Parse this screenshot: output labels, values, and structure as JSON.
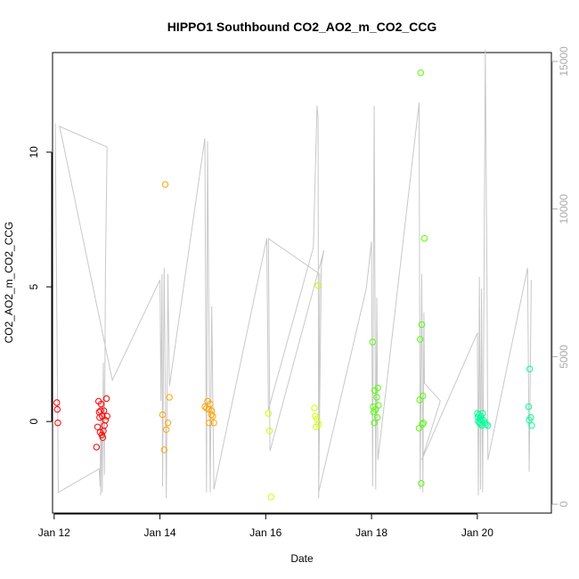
{
  "chart_data": {
    "type": "scatter",
    "title": "HIPPO1 Southbound CO2_AO2_m_CO2_CCG",
    "xlabel": "Date",
    "ylabel": "CO2_AO2_m_CO2_CCG",
    "x_ticks": [
      {
        "day": 12,
        "label": "Jan 12"
      },
      {
        "day": 14,
        "label": "Jan 14"
      },
      {
        "day": 16,
        "label": "Jan 16"
      },
      {
        "day": 18,
        "label": "Jan 18"
      },
      {
        "day": 20,
        "label": "Jan 20"
      }
    ],
    "xlim": [
      11.97,
      21.4
    ],
    "ylim": [
      -3.4,
      13.7
    ],
    "y_ticks": [
      0,
      5,
      10
    ],
    "y2_ticks": [
      0,
      5000,
      10000,
      15000
    ],
    "y2lim": [
      -300,
      15300
    ],
    "grid": false,
    "series": [
      {
        "color": "#ff0000",
        "points": [
          [
            12.05,
            0.7
          ],
          [
            12.06,
            0.45
          ],
          [
            12.07,
            -0.05
          ],
          [
            12.8,
            -0.95
          ],
          [
            12.82,
            -0.2
          ],
          [
            12.84,
            0.75
          ],
          [
            12.85,
            0.35
          ],
          [
            12.86,
            0.15
          ],
          [
            12.87,
            -0.4
          ],
          [
            12.88,
            0.4
          ],
          [
            12.89,
            0.65
          ],
          [
            12.9,
            -0.5
          ],
          [
            12.91,
            0.2
          ],
          [
            12.92,
            -0.6
          ],
          [
            12.93,
            -0.35
          ],
          [
            12.94,
            0.4
          ],
          [
            12.95,
            -0.15
          ],
          [
            12.97,
            0.05
          ],
          [
            12.99,
            0.85
          ],
          [
            13.0,
            0.2
          ]
        ]
      },
      {
        "color": "#ffa500",
        "points": [
          [
            14.05,
            0.25
          ],
          [
            14.08,
            -1.05
          ],
          [
            14.1,
            8.8
          ],
          [
            14.12,
            -0.3
          ],
          [
            14.15,
            -0.05
          ],
          [
            14.18,
            0.9
          ],
          [
            14.85,
            0.55
          ],
          [
            14.88,
            0.5
          ],
          [
            14.9,
            0.75
          ],
          [
            14.92,
            0.45
          ],
          [
            14.93,
            -0.05
          ],
          [
            14.95,
            0.65
          ],
          [
            14.97,
            0.25
          ],
          [
            14.98,
            0.4
          ],
          [
            15.0,
            0.2
          ],
          [
            15.02,
            -0.05
          ]
        ]
      },
      {
        "color": "#ccff00",
        "points": [
          [
            16.05,
            0.3
          ],
          [
            16.07,
            -0.35
          ],
          [
            16.1,
            -2.8
          ],
          [
            16.92,
            0.5
          ],
          [
            16.94,
            0.2
          ],
          [
            16.95,
            -0.2
          ],
          [
            16.97,
            0.1
          ],
          [
            16.99,
            5.05
          ],
          [
            17.0,
            -0.1
          ]
        ]
      },
      {
        "color": "#55ff00",
        "points": [
          [
            18.02,
            2.95
          ],
          [
            18.03,
            0.55
          ],
          [
            18.04,
            0.35
          ],
          [
            18.05,
            -0.05
          ],
          [
            18.06,
            1.15
          ],
          [
            18.08,
            0.45
          ],
          [
            18.1,
            0.9
          ],
          [
            18.11,
            0.15
          ],
          [
            18.12,
            1.25
          ],
          [
            18.13,
            0.6
          ],
          [
            18.9,
            -0.25
          ],
          [
            18.91,
            0.8
          ],
          [
            18.92,
            3.05
          ],
          [
            18.93,
            12.95
          ],
          [
            18.94,
            -2.3
          ],
          [
            18.95,
            3.6
          ],
          [
            18.96,
            -0.1
          ],
          [
            18.97,
            0.95
          ],
          [
            18.98,
            -0.05
          ],
          [
            19.0,
            6.8
          ]
        ]
      },
      {
        "color": "#00ff99",
        "points": [
          [
            20.0,
            0.3
          ],
          [
            20.01,
            0.15
          ],
          [
            20.02,
            0.0
          ],
          [
            20.03,
            0.25
          ],
          [
            20.04,
            -0.05
          ],
          [
            20.05,
            0.1
          ],
          [
            20.06,
            -0.1
          ],
          [
            20.07,
            0.2
          ],
          [
            20.08,
            0.05
          ],
          [
            20.09,
            -0.15
          ],
          [
            20.1,
            0.3
          ],
          [
            20.12,
            0.05
          ],
          [
            20.14,
            -0.05
          ],
          [
            20.17,
            -0.1
          ],
          [
            20.2,
            -0.15
          ],
          [
            20.97,
            0.55
          ],
          [
            20.98,
            0.05
          ],
          [
            20.99,
            1.95
          ],
          [
            21.01,
            0.15
          ],
          [
            21.03,
            -0.15
          ]
        ]
      }
    ],
    "secondary_line": {
      "color": "#c8c8c8",
      "axis": "right",
      "points": [
        [
          12.02,
          12900
        ],
        [
          12.08,
          400
        ],
        [
          12.85,
          1200
        ],
        [
          12.87,
          600
        ],
        [
          12.88,
          3000
        ],
        [
          12.88,
          300
        ],
        [
          12.9,
          3500
        ],
        [
          12.91,
          400
        ],
        [
          12.93,
          4800
        ],
        [
          12.95,
          1000
        ],
        [
          12.97,
          8000
        ],
        [
          13.0,
          12100
        ],
        [
          12.1,
          12800
        ],
        [
          12.15,
          12400
        ],
        [
          13.1,
          4200
        ],
        [
          14.0,
          7600
        ],
        [
          14.02,
          3500
        ],
        [
          14.04,
          7800
        ],
        [
          14.05,
          600
        ],
        [
          14.08,
          8000
        ],
        [
          14.12,
          200
        ],
        [
          14.15,
          7800
        ],
        [
          14.18,
          4000
        ],
        [
          14.85,
          12400
        ],
        [
          14.88,
          400
        ],
        [
          14.9,
          12300
        ],
        [
          14.95,
          400
        ],
        [
          14.98,
          6700
        ],
        [
          15.02,
          500
        ],
        [
          16.02,
          9000
        ],
        [
          16.05,
          3200
        ],
        [
          16.9,
          8700
        ],
        [
          16.97,
          13500
        ],
        [
          16.99,
          13100
        ],
        [
          17.0,
          200
        ],
        [
          17.05,
          8100
        ],
        [
          17.1,
          8600
        ],
        [
          16.08,
          1800
        ],
        [
          16.05,
          9000
        ],
        [
          17.02,
          7800
        ],
        [
          17.0,
          400
        ],
        [
          17.9,
          7300
        ],
        [
          18.0,
          8900
        ],
        [
          18.02,
          600
        ],
        [
          18.05,
          13500
        ],
        [
          18.08,
          500
        ],
        [
          18.1,
          7000
        ],
        [
          18.12,
          1500
        ],
        [
          18.9,
          13600
        ],
        [
          18.92,
          500
        ],
        [
          18.95,
          7800
        ],
        [
          18.97,
          400
        ],
        [
          18.99,
          6500
        ],
        [
          19.0,
          4100
        ],
        [
          19.3,
          3500
        ],
        [
          18.95,
          1500
        ],
        [
          20.0,
          5800
        ],
        [
          20.02,
          300
        ],
        [
          20.04,
          7700
        ],
        [
          20.06,
          500
        ],
        [
          20.08,
          7300
        ],
        [
          20.1,
          400
        ],
        [
          20.12,
          5600
        ],
        [
          20.15,
          15400
        ],
        [
          20.18,
          8000
        ],
        [
          20.2,
          1500
        ],
        [
          20.95,
          8000
        ],
        [
          20.98,
          1100
        ],
        [
          21.02,
          7600
        ]
      ]
    }
  }
}
